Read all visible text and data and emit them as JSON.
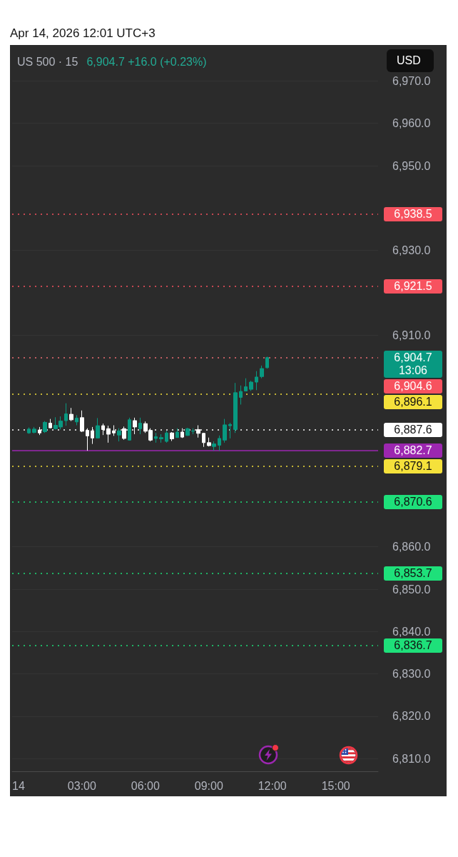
{
  "chart_data": {
    "type": "candlestick",
    "title": "US 500 · 15",
    "subtitle": "6,904.7  +16.0 (+0.23%)",
    "ylabel": "USD",
    "annotations": [
      "Apr 14, 2026 12:01 UTC+3"
    ],
    "x": [
      "2026-04-14T00:30",
      "2026-04-14T00:45",
      "2026-04-14T01:00",
      "2026-04-14T01:15",
      "2026-04-14T01:30",
      "2026-04-14T01:45",
      "2026-04-14T02:00",
      "2026-04-14T02:15",
      "2026-04-14T02:30",
      "2026-04-14T02:45",
      "2026-04-14T03:00",
      "2026-04-14T03:15",
      "2026-04-14T03:30",
      "2026-04-14T03:45",
      "2026-04-14T04:00",
      "2026-04-14T04:15",
      "2026-04-14T04:30",
      "2026-04-14T04:45",
      "2026-04-14T05:00",
      "2026-04-14T05:15",
      "2026-04-14T05:30",
      "2026-04-14T05:45",
      "2026-04-14T06:00",
      "2026-04-14T06:15",
      "2026-04-14T06:30",
      "2026-04-14T06:45",
      "2026-04-14T07:00",
      "2026-04-14T07:15",
      "2026-04-14T07:30",
      "2026-04-14T07:45",
      "2026-04-14T08:00",
      "2026-04-14T08:15",
      "2026-04-14T08:30",
      "2026-04-14T08:45",
      "2026-04-14T09:00",
      "2026-04-14T09:15",
      "2026-04-14T09:30",
      "2026-04-14T09:45",
      "2026-04-14T10:00",
      "2026-04-14T10:15",
      "2026-04-14T10:30",
      "2026-04-14T10:45",
      "2026-04-14T11:00",
      "2026-04-14T11:15",
      "2026-04-14T11:30",
      "2026-04-14T11:45"
    ],
    "ohlc": [
      [
        6886.9,
        6888.2,
        6886.7,
        6887.8
      ],
      [
        6887.0,
        6888.3,
        6886.8,
        6887.8
      ],
      [
        6887.6,
        6888.3,
        6886.4,
        6886.9
      ],
      [
        6887.2,
        6889.7,
        6886.9,
        6889.4
      ],
      [
        6889.2,
        6890.2,
        6888.0,
        6888.1
      ],
      [
        6887.9,
        6890.6,
        6887.7,
        6888.7
      ],
      [
        6888.3,
        6890.8,
        6887.7,
        6889.7
      ],
      [
        6889.8,
        6893.9,
        6888.6,
        6891.4
      ],
      [
        6891.3,
        6892.8,
        6889.7,
        6890.0
      ],
      [
        6889.5,
        6891.1,
        6888.7,
        6890.4
      ],
      [
        6890.5,
        6892.2,
        6887.1,
        6887.3
      ],
      [
        6887.5,
        6888.0,
        6882.7,
        6886.2
      ],
      [
        6887.4,
        6888.3,
        6884.3,
        6885.7
      ],
      [
        6885.7,
        6890.4,
        6885.6,
        6888.6
      ],
      [
        6888.6,
        6889.1,
        6886.4,
        6887.7
      ],
      [
        6887.9,
        6888.6,
        6884.6,
        6886.6
      ],
      [
        6887.4,
        6888.7,
        6886.2,
        6886.9
      ],
      [
        6886.4,
        6888.0,
        6884.9,
        6887.4
      ],
      [
        6887.9,
        6888.4,
        6885.3,
        6885.6
      ],
      [
        6885.2,
        6890.5,
        6885.1,
        6890.0
      ],
      [
        6889.8,
        6890.5,
        6886.6,
        6888.3
      ],
      [
        6887.9,
        6890.5,
        6886.6,
        6889.2
      ],
      [
        6889.1,
        6889.6,
        6886.9,
        6887.3
      ],
      [
        6887.5,
        6888.0,
        6884.9,
        6885.2
      ],
      [
        6885.6,
        6886.9,
        6884.6,
        6886.0
      ],
      [
        6885.5,
        6886.6,
        6884.6,
        6885.8
      ],
      [
        6884.9,
        6887.4,
        6884.6,
        6886.9
      ],
      [
        6886.9,
        6887.1,
        6885.0,
        6885.5
      ],
      [
        6885.8,
        6888.0,
        6885.8,
        6887.1
      ],
      [
        6887.1,
        6888.0,
        6885.7,
        6885.9
      ],
      [
        6886.3,
        6888.1,
        6886.2,
        6887.9
      ],
      [
        6887.3,
        6888.0,
        6886.6,
        6887.4
      ],
      [
        6887.7,
        6888.7,
        6885.8,
        6886.8
      ],
      [
        6886.8,
        6886.9,
        6883.6,
        6884.6
      ],
      [
        6884.6,
        6885.8,
        6883.7,
        6883.9
      ],
      [
        6883.7,
        6884.9,
        6882.7,
        6884.3
      ],
      [
        6884.0,
        6886.3,
        6882.7,
        6885.6
      ],
      [
        6885.2,
        6890.2,
        6884.6,
        6888.8
      ],
      [
        6888.6,
        6889.3,
        6885.6,
        6888.9
      ],
      [
        6887.7,
        6898.7,
        6886.9,
        6896.4
      ],
      [
        6895.3,
        6898.1,
        6893.6,
        6896.7
      ],
      [
        6896.8,
        6899.8,
        6896.7,
        6897.8
      ],
      [
        6897.2,
        6899.2,
        6896.8,
        6898.9
      ],
      [
        6898.9,
        6901.5,
        6897.0,
        6900.1
      ],
      [
        6900.2,
        6902.8,
        6899.8,
        6902.1
      ],
      [
        6902.3,
        6904.9,
        6902.1,
        6904.7
      ]
    ],
    "colors": [
      "#089981",
      "#089981",
      "#ffffff",
      "#089981",
      "#ffffff",
      "#089981",
      "#089981",
      "#089981",
      "#ffffff",
      "#089981",
      "#ffffff",
      "#ffffff",
      "#ffffff",
      "#089981",
      "#ffffff",
      "#ffffff",
      "#ffffff",
      "#089981",
      "#ffffff",
      "#089981",
      "#ffffff",
      "#089981",
      "#ffffff",
      "#ffffff",
      "#089981",
      "#089981",
      "#089981",
      "#ffffff",
      "#089981",
      "#ffffff",
      "#089981",
      "#089981",
      "#ffffff",
      "#ffffff",
      "#ffffff",
      "#089981",
      "#089981",
      "#089981",
      "#089981",
      "#089981",
      "#089981",
      "#089981",
      "#089981",
      "#089981",
      "#089981",
      "#089981"
    ],
    "xlim": [
      "2026-04-13T23:42",
      "2026-04-14T17:00"
    ],
    "xticks": [
      {
        "value": "2026-04-14T00:00",
        "label": "14"
      },
      {
        "value": "2026-04-14T03:00",
        "label": "03:00"
      },
      {
        "value": "2026-04-14T06:00",
        "label": "06:00"
      },
      {
        "value": "2026-04-14T09:00",
        "label": "09:00"
      },
      {
        "value": "2026-04-14T12:00",
        "label": "12:00"
      },
      {
        "value": "2026-04-14T15:00",
        "label": "15:00"
      }
    ],
    "ylim": [
      6807,
      6978.5
    ],
    "yticks": [
      {
        "value": 6810,
        "label": "6,810.0"
      },
      {
        "value": 6820,
        "label": "6,820.0"
      },
      {
        "value": 6830,
        "label": "6,830.0"
      },
      {
        "value": 6840,
        "label": "6,840.0"
      },
      {
        "value": 6850,
        "label": "6,850.0"
      },
      {
        "value": 6860,
        "label": "6,860.0"
      },
      {
        "value": 6910,
        "label": "6,910.0"
      },
      {
        "value": 6930,
        "label": "6,930.0"
      },
      {
        "value": 6950,
        "label": "6,950.0"
      },
      {
        "value": 6960,
        "label": "6,960.0"
      },
      {
        "value": 6970,
        "label": "6,970.0"
      }
    ],
    "ref_lines": [
      {
        "axis": "y",
        "value": 6938.5,
        "label": "6,938.5",
        "color": "#f7525f",
        "line_style": "dotted"
      },
      {
        "axis": "y",
        "value": 6921.5,
        "label": "6,921.5",
        "color": "#f7525f",
        "line_style": "dotted"
      },
      {
        "axis": "y",
        "value": 6904.7,
        "label": "6,904.7\n13:06",
        "color": "#089981",
        "line_style": "dotted"
      },
      {
        "axis": "y",
        "value": 6904.6,
        "label": "6,904.6",
        "color": "#f7525f",
        "line_style": "dotted"
      },
      {
        "axis": "y",
        "value": 6896.1,
        "label": "6,896.1",
        "color": "#f5e13b",
        "line_style": "dotted"
      },
      {
        "axis": "y",
        "value": 6887.6,
        "label": "6,887.6",
        "color": "#ffffff",
        "line_style": "dotted"
      },
      {
        "axis": "y",
        "value": 6882.7,
        "label": "6,882.7",
        "color": "#9c27b0",
        "line_style": "solid"
      },
      {
        "axis": "y",
        "value": 6879.1,
        "label": "6,879.1",
        "color": "#f5e13b",
        "line_style": "dotted"
      },
      {
        "axis": "y",
        "value": 6870.6,
        "label": "6,870.6",
        "color": "#1ee07a",
        "line_style": "dotted"
      },
      {
        "axis": "y",
        "value": 6853.7,
        "label": "6,853.7",
        "color": "#1ee07a",
        "line_style": "dotted"
      },
      {
        "axis": "y",
        "value": 6836.7,
        "label": "6,836.7",
        "color": "#1ee07a",
        "line_style": "dotted"
      }
    ],
    "grid": "y"
  }
}
